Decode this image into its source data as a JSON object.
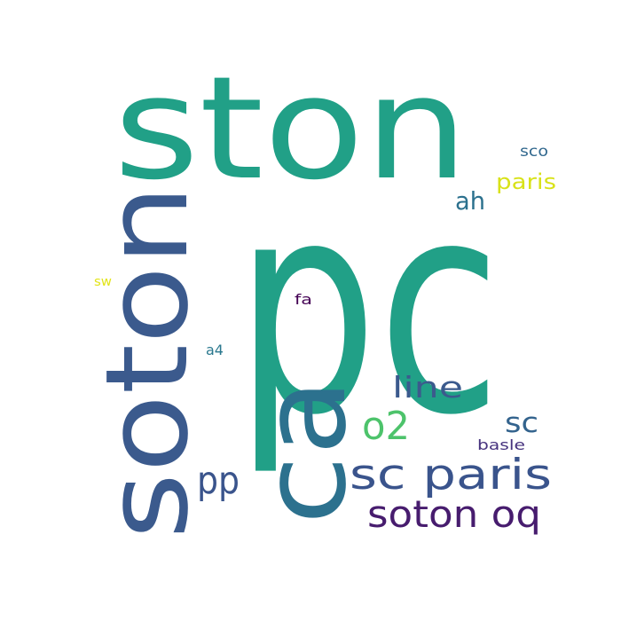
{
  "words": [
    {
      "text": "pc",
      "color": "#21a087"
    },
    {
      "text": "ston",
      "color": "#21a087"
    },
    {
      "text": "soton",
      "color": "#3b5a8d"
    },
    {
      "text": "ca",
      "color": "#2c718e"
    },
    {
      "text": "sc paris",
      "color": "#3a548c"
    },
    {
      "text": "soton oq",
      "color": "#471c6e"
    },
    {
      "text": "line",
      "color": "#3b5a8d"
    },
    {
      "text": "o2",
      "color": "#4dc36b"
    },
    {
      "text": "pp",
      "color": "#3a548c"
    },
    {
      "text": "sc",
      "color": "#33638d"
    },
    {
      "text": "ah",
      "color": "#2c718e"
    },
    {
      "text": "paris",
      "color": "#d8e219"
    },
    {
      "text": "sco",
      "color": "#31688e"
    },
    {
      "text": "basle",
      "color": "#46327e"
    },
    {
      "text": "sw",
      "color": "#e2e418"
    },
    {
      "text": "fa",
      "color": "#440154"
    },
    {
      "text": "a4",
      "color": "#2a788e"
    }
  ]
}
